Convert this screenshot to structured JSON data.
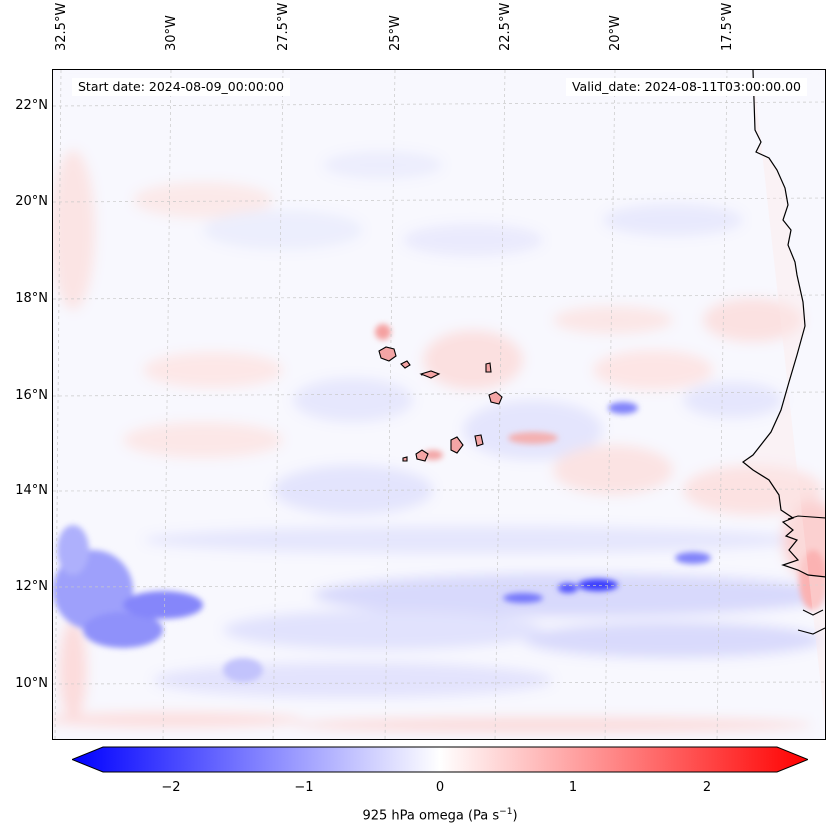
{
  "header": {
    "start_date": "Start date: 2024-08-09_00:00:00",
    "valid_date": "Valid_date: 2024-08-11T03:00:00.00"
  },
  "axes": {
    "lon_labels": [
      "32.5°W",
      "30°W",
      "27.5°W",
      "25°W",
      "22.5°W",
      "20°W",
      "17.5°W"
    ],
    "lat_labels": [
      "22°N",
      "20°N",
      "18°N",
      "16°N",
      "14°N",
      "12°N",
      "10°N"
    ]
  },
  "colorbar": {
    "ticks": [
      "−2",
      "−1",
      "0",
      "1",
      "2"
    ],
    "label": "925 hPa omega (Pa s",
    "label_unit_exp": "−1",
    "label_close": ")",
    "min": -2.7,
    "max": 2.7,
    "colors": {
      "low": "#0000ff",
      "mid": "#ffffff",
      "high": "#ff0000"
    }
  },
  "map": {
    "variable": "925 hPa omega",
    "units": "Pa s−1",
    "lon_range": [
      -33,
      -15
    ],
    "lat_range": [
      9,
      23
    ]
  }
}
